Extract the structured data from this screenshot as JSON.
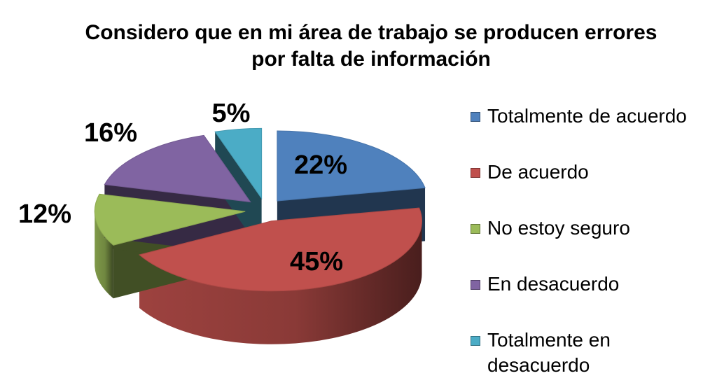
{
  "chart_data": {
    "type": "pie",
    "title": "Considero que en mi área de trabajo se producen errores por falta de información",
    "title_lines": [
      "Considero que en mi área de trabajo se producen errores",
      "por falta de información"
    ],
    "categories": [
      "Totalmente de acuerdo",
      "De acuerdo",
      "No estoy seguro",
      "En desacuerdo",
      "Totalmente en desacuerdo"
    ],
    "values": [
      22,
      45,
      12,
      16,
      5
    ],
    "data_labels": [
      "22%",
      "45%",
      "12%",
      "16%",
      "5%"
    ],
    "colors": [
      "#4F81BD",
      "#C0504D",
      "#9BBB59",
      "#8064A2",
      "#4BACC6"
    ],
    "exploded": true,
    "three_d": true,
    "legend_position": "right"
  }
}
